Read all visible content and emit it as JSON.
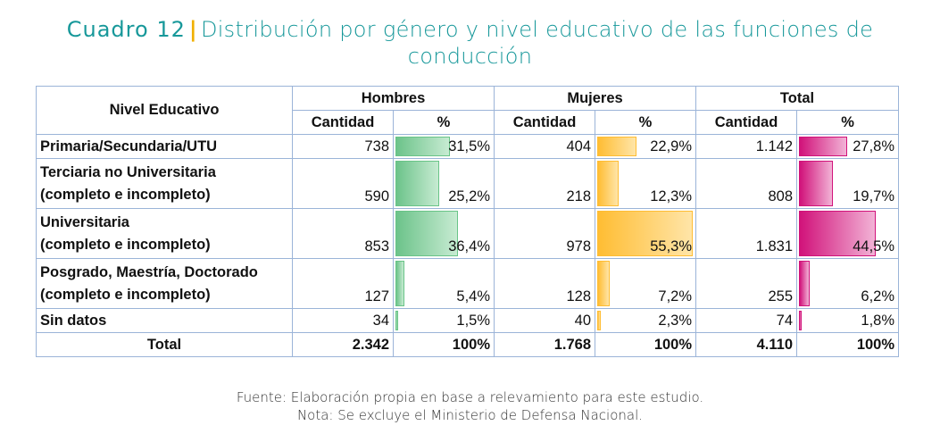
{
  "title": {
    "label": "Cuadro 12",
    "separator": "|",
    "text": "Distribución por género y nivel educativo de las funciones de conducción"
  },
  "headers": {
    "nivel": "Nivel Educativo",
    "hombres": "Hombres",
    "mujeres": "Mujeres",
    "total": "Total",
    "cantidad": "Cantidad",
    "pct": "%"
  },
  "rows": [
    {
      "line1": "Primaria/Secundaria/UTU",
      "line2": "",
      "h_cant": "738",
      "h_pct": "31,5%",
      "h_frac": 0.315,
      "m_cant": "404",
      "m_pct": "22,9%",
      "m_frac": 0.229,
      "t_cant": "1.142",
      "t_pct": "27,8%",
      "t_frac": 0.278
    },
    {
      "line1": "Terciaria no Universitaria",
      "line2": "(completo e incompleto)",
      "h_cant": "590",
      "h_pct": "25,2%",
      "h_frac": 0.252,
      "m_cant": "218",
      "m_pct": "12,3%",
      "m_frac": 0.123,
      "t_cant": "808",
      "t_pct": "19,7%",
      "t_frac": 0.197
    },
    {
      "line1": "Universitaria",
      "line2": "(completo e incompleto)",
      "h_cant": "853",
      "h_pct": "36,4%",
      "h_frac": 0.364,
      "m_cant": "978",
      "m_pct": "55,3%",
      "m_frac": 0.553,
      "t_cant": "1.831",
      "t_pct": "44,5%",
      "t_frac": 0.445
    },
    {
      "line1": "Posgrado, Maestría, Doctorado",
      "line2": "(completo e incompleto)",
      "h_cant": "127",
      "h_pct": "5,4%",
      "h_frac": 0.054,
      "m_cant": "128",
      "m_pct": "7,2%",
      "m_frac": 0.072,
      "t_cant": "255",
      "t_pct": "6,2%",
      "t_frac": 0.062
    },
    {
      "line1": "Sin datos",
      "line2": "",
      "h_cant": "34",
      "h_pct": "1,5%",
      "h_frac": 0.015,
      "m_cant": "40",
      "m_pct": "2,3%",
      "m_frac": 0.023,
      "t_cant": "74",
      "t_pct": "1,8%",
      "t_frac": 0.018
    }
  ],
  "totals": {
    "label": "Total",
    "h_cant": "2.342",
    "h_pct": "100%",
    "m_cant": "1.768",
    "m_pct": "100%",
    "t_cant": "4.110",
    "t_pct": "100%"
  },
  "footer": {
    "fuente": "Fuente: Elaboración propia en base a relevamiento para este estudio.",
    "nota": "Nota: Se excluye el Ministerio de Defensa Nacional."
  },
  "colors": {
    "title": "#17989a",
    "separator": "#f0b000",
    "hombres_bar": "#6cc38a",
    "mujeres_bar": "#ffbd33",
    "total_bar": "#d1127a",
    "border": "#9bb4d8"
  }
}
